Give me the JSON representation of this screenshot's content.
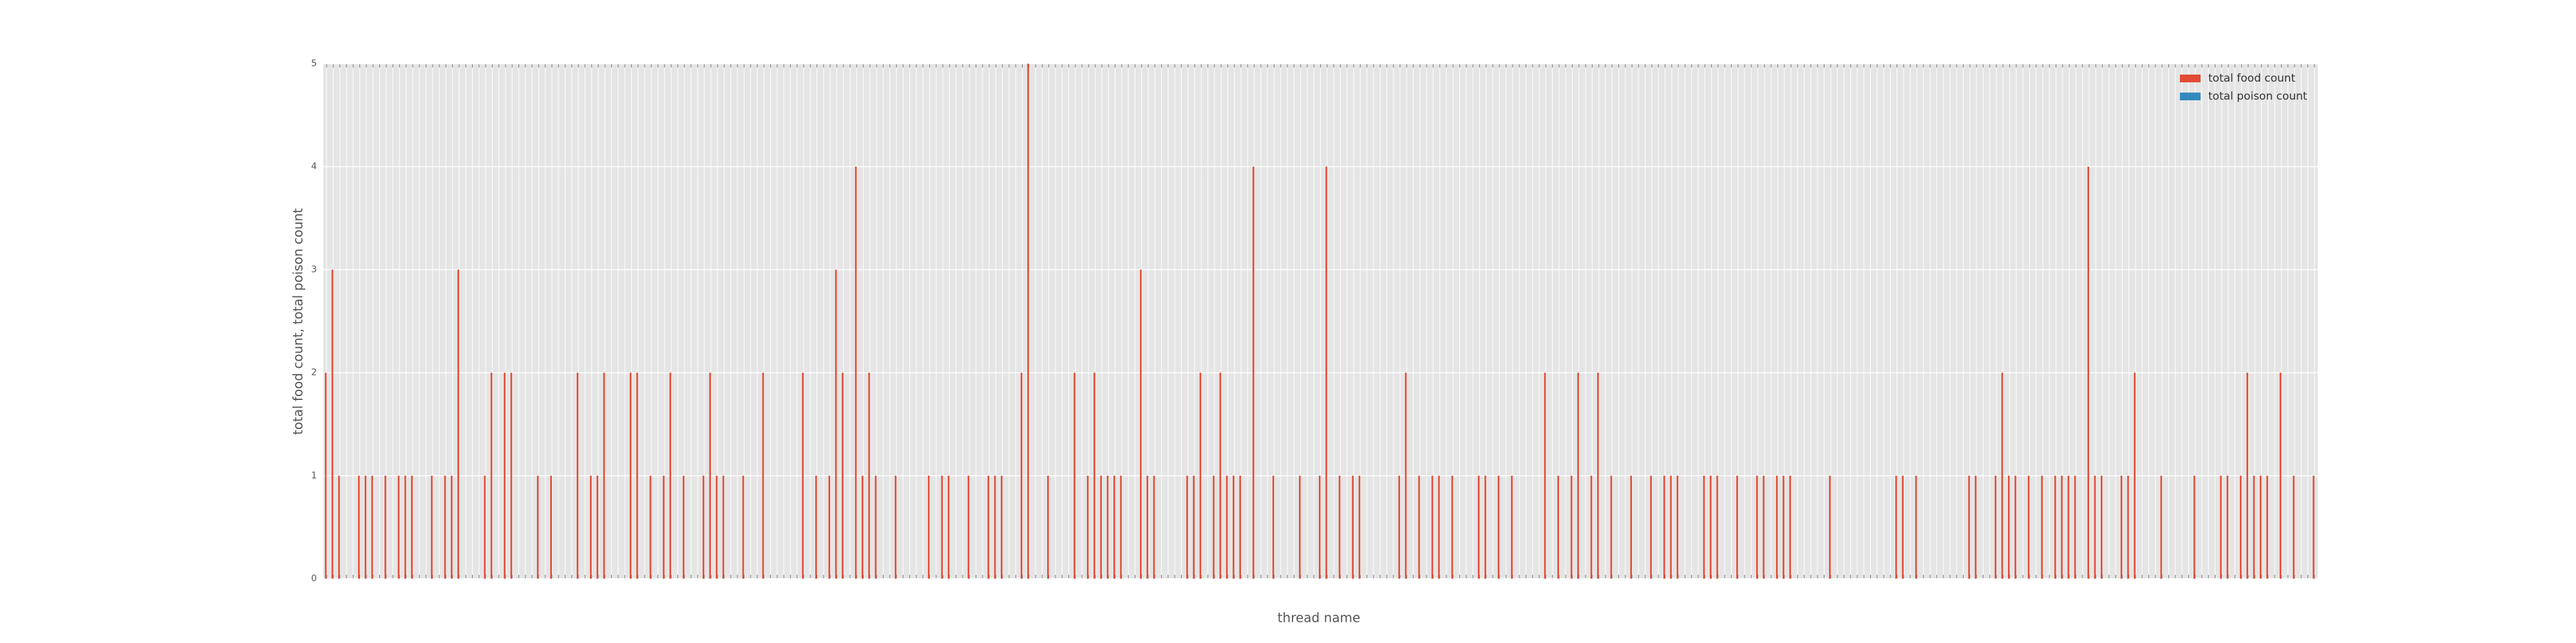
{
  "chart_data": {
    "type": "bar",
    "xlabel": "thread name",
    "ylabel": "total food count, total poison count",
    "categories": [
      null,
      null,
      null,
      null,
      null,
      null,
      null,
      null,
      null,
      null,
      null,
      null,
      null,
      null,
      null,
      null,
      null,
      null,
      null,
      null,
      null,
      null,
      null,
      null,
      null,
      null,
      null,
      null,
      null,
      null,
      null,
      null,
      null,
      null,
      null,
      null,
      null,
      null,
      null,
      null,
      null,
      null,
      null,
      null,
      null,
      null,
      null,
      null,
      null,
      null,
      null,
      null,
      null,
      null,
      null,
      null,
      null,
      null,
      null,
      null,
      null,
      null,
      null,
      null,
      null,
      null,
      null,
      null,
      null,
      null,
      null,
      null,
      null,
      null,
      null,
      null,
      null,
      null,
      null,
      null,
      null,
      null,
      null,
      null,
      null,
      null,
      null,
      null,
      null,
      null,
      null,
      null,
      null,
      null,
      null,
      null,
      null,
      null,
      null,
      null,
      null,
      null,
      null,
      null,
      null,
      null,
      null,
      null,
      null,
      null,
      null,
      null,
      null,
      null,
      null,
      null,
      null,
      null,
      null,
      null,
      null,
      null,
      null,
      null,
      null,
      null,
      null,
      null,
      null,
      null,
      null,
      null,
      null,
      null,
      null,
      null,
      null,
      null,
      null,
      null,
      null,
      null,
      null,
      null,
      null,
      null,
      null,
      null,
      null,
      null,
      null,
      null,
      null,
      null,
      null,
      null,
      null,
      null,
      null,
      null,
      null,
      null,
      null,
      null,
      null,
      null,
      null,
      null,
      null,
      null,
      null,
      null,
      null,
      null,
      null,
      null,
      null,
      null,
      null,
      null,
      null,
      null,
      null,
      null,
      null,
      null,
      null,
      null,
      null,
      null,
      null,
      null,
      null,
      null,
      null,
      null,
      null,
      null,
      null,
      null,
      null,
      null,
      null,
      null,
      null,
      null,
      null,
      null,
      null,
      null,
      null,
      null,
      null,
      null,
      null,
      null,
      null,
      null,
      null,
      null,
      null,
      null,
      null,
      null,
      null,
      null,
      null,
      null,
      null,
      null,
      null,
      null,
      null,
      null,
      null,
      null,
      null,
      null,
      null,
      null,
      null,
      null,
      null,
      null,
      null,
      null,
      null,
      null,
      null,
      null,
      null,
      null,
      null,
      null,
      null,
      null,
      null,
      null,
      null,
      null,
      null,
      null,
      null,
      null,
      null,
      null,
      null,
      null,
      null,
      null,
      null,
      null,
      null,
      null,
      null,
      null,
      null,
      null,
      null,
      null,
      null,
      null,
      null,
      null,
      null,
      null,
      null,
      null,
      null,
      null,
      null,
      null,
      null,
      null,
      null,
      null,
      null,
      null,
      null,
      null,
      null
    ],
    "series": [
      {
        "name": "total food count",
        "color": "#e24a33",
        "values": [
          2,
          3,
          1,
          0,
          0,
          1,
          1,
          1,
          0,
          1,
          0,
          1,
          1,
          1,
          0,
          0,
          1,
          0,
          1,
          1,
          3,
          0,
          0,
          0,
          1,
          2,
          0,
          2,
          2,
          0,
          0,
          0,
          1,
          0,
          1,
          0,
          0,
          0,
          2,
          0,
          1,
          1,
          2,
          0,
          0,
          0,
          2,
          2,
          0,
          1,
          0,
          1,
          2,
          0,
          1,
          0,
          0,
          1,
          2,
          1,
          1,
          0,
          0,
          1,
          0,
          0,
          2,
          0,
          0,
          0,
          0,
          0,
          2,
          0,
          1,
          0,
          1,
          3,
          2,
          0,
          4,
          1,
          2,
          1,
          0,
          0,
          1,
          0,
          0,
          0,
          0,
          1,
          0,
          1,
          1,
          0,
          0,
          1,
          0,
          0,
          1,
          1,
          1,
          0,
          0,
          2,
          5,
          0,
          0,
          1,
          0,
          0,
          0,
          2,
          0,
          1,
          2,
          1,
          1,
          1,
          1,
          0,
          0,
          3,
          1,
          1,
          0,
          0,
          0,
          0,
          1,
          1,
          2,
          0,
          1,
          2,
          1,
          1,
          1,
          0,
          4,
          0,
          0,
          1,
          0,
          0,
          0,
          1,
          0,
          0,
          1,
          4,
          0,
          1,
          0,
          1,
          1,
          0,
          0,
          0,
          0,
          0,
          1,
          2,
          0,
          1,
          0,
          1,
          1,
          0,
          1,
          0,
          0,
          0,
          1,
          1,
          0,
          1,
          0,
          1,
          0,
          0,
          0,
          0,
          2,
          0,
          1,
          0,
          1,
          2,
          0,
          1,
          2,
          0,
          1,
          0,
          0,
          1,
          0,
          0,
          1,
          0,
          1,
          1,
          1,
          0,
          0,
          0,
          1,
          1,
          1,
          0,
          0,
          1,
          0,
          0,
          1,
          1,
          0,
          1,
          1,
          1,
          0,
          0,
          0,
          0,
          0,
          1,
          0,
          0,
          0,
          0,
          0,
          0,
          0,
          0,
          0,
          1,
          1,
          0,
          1,
          0,
          0,
          0,
          0,
          0,
          0,
          0,
          1,
          1,
          0,
          0,
          1,
          2,
          1,
          1,
          0,
          1,
          0,
          1,
          0,
          1,
          1,
          1,
          1,
          0,
          4,
          1,
          1,
          0,
          0,
          1,
          1,
          2,
          0,
          0,
          0,
          1,
          0,
          0,
          0,
          0,
          1,
          0,
          0,
          0,
          1,
          1,
          0,
          1,
          2,
          1,
          1,
          1,
          0,
          2,
          0,
          1,
          0,
          0,
          1
        ]
      },
      {
        "name": "total poison count",
        "color": "#348abd",
        "values": [
          0,
          0,
          0,
          0,
          0,
          0,
          0,
          0,
          0,
          0,
          0,
          0,
          0,
          0,
          0,
          0,
          0,
          0,
          0,
          0,
          0,
          0,
          0,
          0,
          0,
          0,
          0,
          0,
          0,
          0,
          0,
          0,
          0,
          0,
          0,
          0,
          0,
          0,
          0,
          0,
          0,
          0,
          0,
          0,
          0,
          0,
          0,
          0,
          0,
          0,
          0,
          0,
          0,
          0,
          0,
          0,
          0,
          0,
          0,
          0,
          0,
          0,
          0,
          0,
          0,
          0,
          0,
          0,
          0,
          0,
          0,
          0,
          0,
          0,
          0,
          0,
          0,
          0,
          0,
          0,
          0,
          0,
          0,
          0,
          0,
          0,
          0,
          0,
          0,
          0,
          0,
          0,
          0,
          0,
          0,
          0,
          0,
          0,
          0,
          0,
          0,
          0,
          0,
          0,
          0,
          0,
          0,
          0,
          0,
          0,
          0,
          0,
          0,
          0,
          0,
          0,
          0,
          0,
          0,
          0,
          0,
          0,
          0,
          0,
          0,
          0,
          0,
          0,
          0,
          0,
          0,
          0,
          0,
          0,
          0,
          0,
          0,
          0,
          0,
          0,
          0,
          0,
          0,
          0,
          0,
          0,
          0,
          0,
          0,
          0,
          0,
          0,
          0,
          0,
          0,
          0,
          0,
          0,
          0,
          0,
          0,
          0,
          0,
          0,
          0,
          0,
          0,
          0,
          0,
          0,
          0,
          0,
          0,
          0,
          0,
          0,
          0,
          0,
          0,
          0,
          0,
          0,
          0,
          0,
          0,
          0,
          0,
          0,
          0,
          0,
          0,
          0,
          0,
          0,
          0,
          0,
          0,
          0,
          0,
          0,
          0,
          0,
          0,
          0,
          0,
          0,
          0,
          0,
          0,
          0,
          0,
          0,
          0,
          0,
          0,
          0,
          0,
          0,
          0,
          0,
          0,
          0,
          0,
          0,
          0,
          0,
          0,
          0,
          0,
          0,
          0,
          0,
          0,
          0,
          0,
          0,
          0,
          0,
          0,
          0,
          0,
          0,
          0,
          0,
          0,
          0,
          0,
          0,
          0,
          0,
          0,
          0,
          0,
          0,
          0,
          0,
          0,
          0,
          0,
          0,
          0,
          0,
          0,
          0,
          0,
          0,
          0,
          0,
          0,
          0,
          0,
          0,
          0,
          0,
          0,
          0,
          0,
          0,
          0,
          0,
          0,
          0,
          0,
          0,
          0,
          0,
          0,
          0,
          0,
          0,
          0,
          0,
          0,
          0,
          0,
          0,
          0,
          0,
          0,
          0,
          0
        ]
      }
    ],
    "ylim": [
      0,
      5
    ],
    "yticks": [
      0,
      1,
      2,
      3,
      4,
      5
    ],
    "grid": true,
    "legend": "upper right"
  }
}
